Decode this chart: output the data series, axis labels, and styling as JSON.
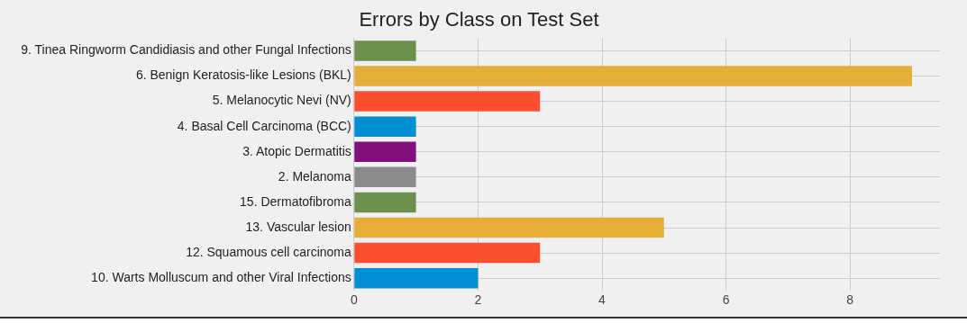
{
  "chart_data": {
    "type": "bar",
    "orientation": "horizontal",
    "title": "Errors by Class on Test Set",
    "categories": [
      "9. Tinea Ringworm Candidiasis and other Fungal Infections",
      "6. Benign Keratosis-like Lesions (BKL)",
      "5. Melanocytic Nevi (NV)",
      "4. Basal Cell Carcinoma (BCC)",
      "3. Atopic Dermatitis",
      "2. Melanoma",
      "15. Dermatofibroma",
      "13. Vascular lesion",
      "12. Squamous cell carcinoma",
      "10. Warts Molluscum and other Viral Infections"
    ],
    "values": [
      1,
      9,
      3,
      1,
      1,
      1,
      1,
      5,
      3,
      2
    ],
    "colors": [
      "#6d904f",
      "#e5ae38",
      "#fc4f30",
      "#008fd5",
      "#810f7c",
      "#8b8b8b",
      "#6d904f",
      "#e5ae38",
      "#fc4f30",
      "#008fd5"
    ],
    "xlim": [
      0,
      9.45
    ],
    "xticks": [
      0,
      2,
      4,
      6,
      8
    ],
    "grid": true,
    "legend": false
  }
}
